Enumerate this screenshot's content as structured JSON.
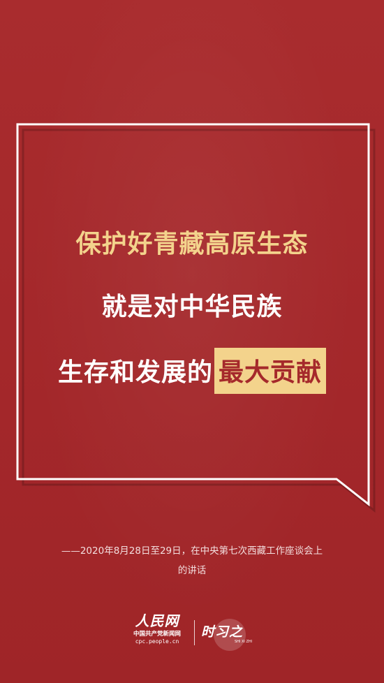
{
  "headline": {
    "line1": "保护好青藏高原生态",
    "line2": "就是对中华民族",
    "line3_prefix": "生存和发展的",
    "line3_highlight": "最大贡献"
  },
  "source": {
    "line1": "——2020年8月28日至29日，在中央第七次西藏工作座谈会上",
    "line2": "的讲话"
  },
  "logos": {
    "people_brand": "人民网",
    "people_sub": "中国共产党新闻网",
    "people_url": "cpc.people.cn",
    "shixizhi_brand": "时习之",
    "shixizhi_pinyin": "SHI XI ZHI"
  },
  "colors": {
    "background": "#a5292b",
    "accent_gold": "#f3d38c",
    "text_white": "#ffffff"
  },
  "icons": {
    "speech_bubble": "speech-bubble-frame-icon",
    "people_logo": "people-daily-logo",
    "shixizhi_logo": "shixizhi-logo"
  }
}
